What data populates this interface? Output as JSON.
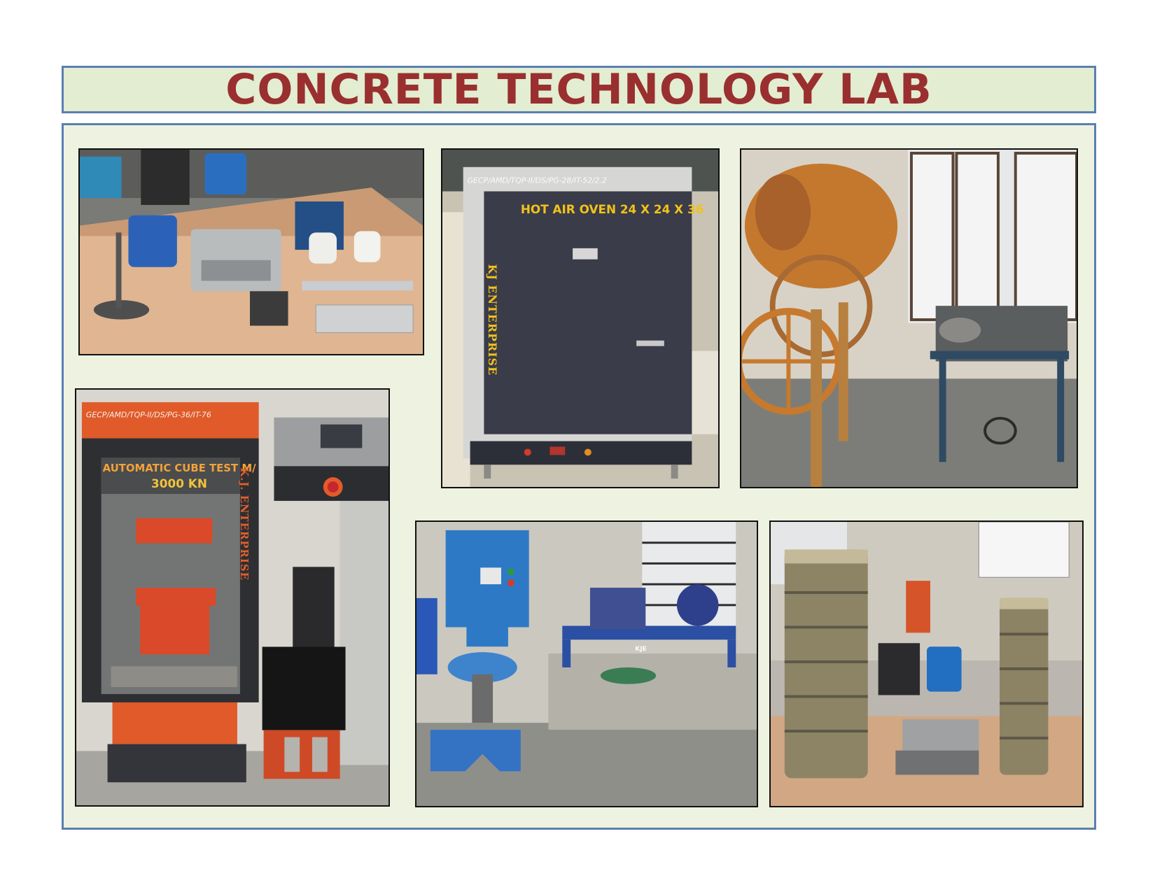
{
  "page": {
    "title": "CONCRETE TECHNOLOGY LAB"
  },
  "photos": [
    {
      "id": "workbench",
      "labels": []
    },
    {
      "id": "hot-air-oven",
      "labels": {
        "tag": "GECP/AMD/TQP-II/DS/PG-28/IT-52/2.2",
        "heading": "HOT AIR OVEN 24 X 24 X 36",
        "brand": "KJ ENTERPRISE"
      }
    },
    {
      "id": "concrete-mixer",
      "labels": []
    },
    {
      "id": "compression-testing-machine",
      "labels": {
        "tag": "GECP/AMD/TQP-II/DS/PG-36/IT-76",
        "heading_line1": "AUTOMATIC CUBE TEST M/",
        "heading_line2": "3000 KN",
        "brand": "K.J. ENTERPRISE"
      }
    },
    {
      "id": "mortar-mixer-vibrator",
      "labels": {
        "plate": "KJE"
      }
    },
    {
      "id": "sieve-stacks",
      "labels": []
    }
  ],
  "colors": {
    "title": "#9a2f2f",
    "title_bg": "#e2edd1",
    "panel_bg": "#eef2e0",
    "border": "#5b7fb0",
    "oven_text": "#f2c21b",
    "ctm_orange": "#e05a2a"
  }
}
